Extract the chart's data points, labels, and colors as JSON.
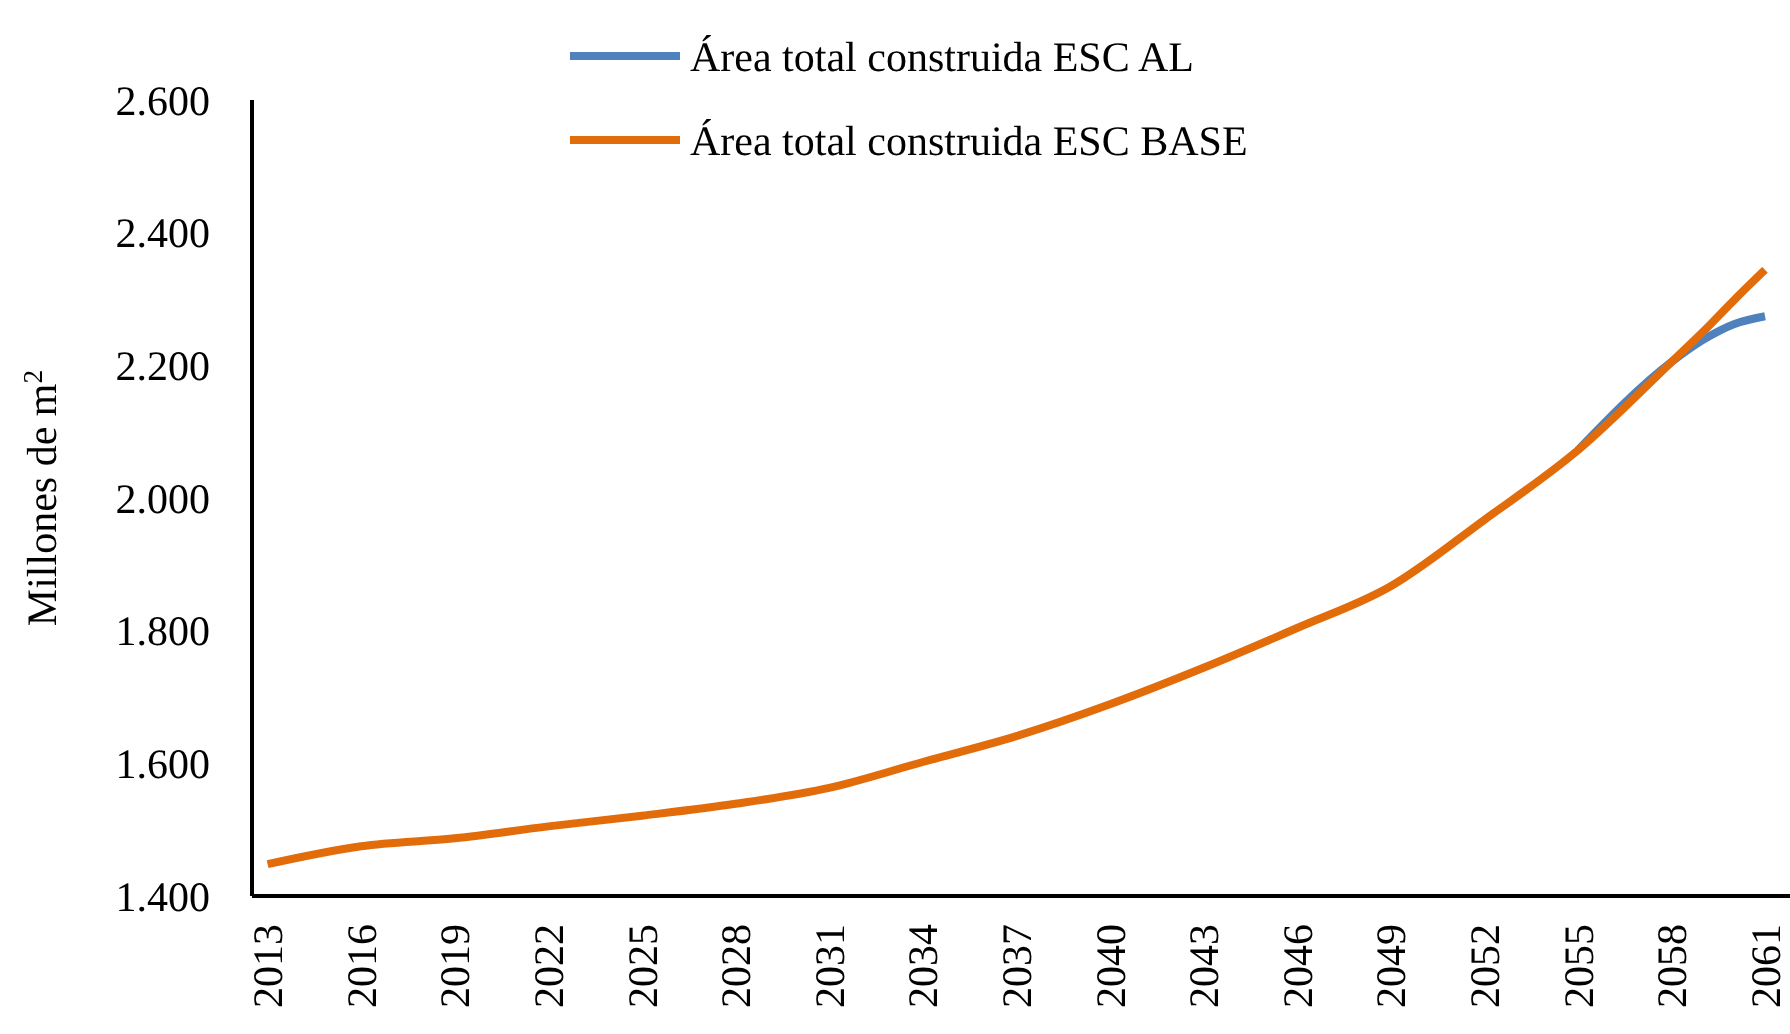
{
  "chart_data": {
    "type": "line",
    "ylabel": "Millones de m$^{2}$",
    "xlim": [
      2012.5,
      2061.8
    ],
    "xticks": [
      2013,
      2016,
      2019,
      2022,
      2025,
      2028,
      2031,
      2034,
      2037,
      2040,
      2043,
      2046,
      2049,
      2052,
      2055,
      2058,
      2061
    ],
    "ylim": [
      1400,
      2600
    ],
    "yticks": [
      {
        "value": 1400,
        "label": "1.400"
      },
      {
        "value": 1600,
        "label": "1.600"
      },
      {
        "value": 1800,
        "label": "1.800"
      },
      {
        "value": 2000,
        "label": "2.000"
      },
      {
        "value": 2200,
        "label": "2.200"
      },
      {
        "value": 2400,
        "label": "2.400"
      },
      {
        "value": 2600,
        "label": "2.600"
      }
    ],
    "grid": false,
    "legend": "top",
    "marker": "none",
    "line_style": "solid",
    "series": [
      {
        "name": "Área total construida ESC AL",
        "color": "#4f81bd",
        "x": [
          2055,
          2058,
          2059,
          2060,
          2061
        ],
        "values": [
          2072,
          2205,
          2238,
          2262,
          2274
        ]
      },
      {
        "name": "Área total construida ESC BASE",
        "color": "#e36c0a",
        "x": [
          2013,
          2016,
          2019,
          2022,
          2025,
          2028,
          2031,
          2034,
          2037,
          2040,
          2043,
          2046,
          2049,
          2052,
          2055,
          2058,
          2059,
          2060,
          2061
        ],
        "values": [
          1448,
          1475,
          1487,
          1505,
          1521,
          1539,
          1563,
          1602,
          1641,
          1689,
          1744,
          1804,
          1867,
          1967,
          2072,
          2205,
          2250,
          2298,
          2344
        ]
      }
    ]
  }
}
